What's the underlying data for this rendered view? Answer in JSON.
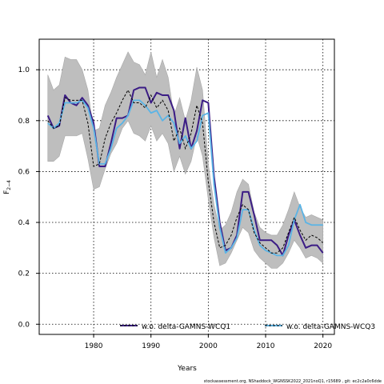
{
  "chart_data": {
    "type": "line",
    "xlabel": "Years",
    "ylabel": "F2-4",
    "ylabel_main": "F",
    "ylabel_sub": "2−4",
    "xlim": [
      1970.5,
      2022
    ],
    "ylim": [
      -0.04,
      1.12
    ],
    "xticks": [
      1980,
      1990,
      2000,
      2010,
      2020
    ],
    "yticks": [
      0.0,
      0.2,
      0.4,
      0.6,
      0.8,
      1.0
    ],
    "xtick_labels": [
      "1980",
      "1990",
      "2000",
      "2010",
      "2020"
    ],
    "ytick_labels": [
      "0.0",
      "0.2",
      "0.4",
      "0.6",
      "0.8",
      "1.0"
    ],
    "grid": true,
    "legend_position": "bottom",
    "footer": "stockassessment.org, NShaddock_WGNSSK2022_2021noQ1, r15689 , git: ec2c2a0c6dde",
    "colors": {
      "band": "#bebebe",
      "series_a": "#3b1c85",
      "series_b": "#5ab4e6",
      "base": "#000000"
    },
    "x": [
      1972,
      1973,
      1974,
      1975,
      1976,
      1977,
      1978,
      1979,
      1980,
      1981,
      1982,
      1983,
      1984,
      1985,
      1986,
      1987,
      1988,
      1989,
      1990,
      1991,
      1992,
      1993,
      1994,
      1995,
      1996,
      1997,
      1998,
      1999,
      2000,
      2001,
      2002,
      2003,
      2004,
      2005,
      2006,
      2007,
      2008,
      2009,
      2010,
      2011,
      2012,
      2013,
      2014,
      2015,
      2016,
      2017,
      2018,
      2019,
      2020
    ],
    "band_upper": [
      0.98,
      0.92,
      0.94,
      1.05,
      1.04,
      1.04,
      1.0,
      0.92,
      0.76,
      0.77,
      0.86,
      0.91,
      0.97,
      1.02,
      1.07,
      1.03,
      1.02,
      0.98,
      1.07,
      0.97,
      1.04,
      0.97,
      0.82,
      0.89,
      0.8,
      0.88,
      1.01,
      0.92,
      0.63,
      0.47,
      0.37,
      0.39,
      0.44,
      0.52,
      0.57,
      0.55,
      0.44,
      0.38,
      0.36,
      0.35,
      0.35,
      0.39,
      0.45,
      0.52,
      0.46,
      0.42,
      0.43,
      0.42,
      0.41
    ],
    "band_lower": [
      0.64,
      0.64,
      0.66,
      0.74,
      0.74,
      0.74,
      0.75,
      0.65,
      0.53,
      0.54,
      0.61,
      0.67,
      0.71,
      0.77,
      0.8,
      0.75,
      0.74,
      0.72,
      0.78,
      0.72,
      0.75,
      0.71,
      0.6,
      0.66,
      0.59,
      0.64,
      0.74,
      0.66,
      0.49,
      0.34,
      0.23,
      0.24,
      0.28,
      0.33,
      0.38,
      0.36,
      0.29,
      0.26,
      0.24,
      0.22,
      0.22,
      0.24,
      0.28,
      0.33,
      0.3,
      0.26,
      0.27,
      0.26,
      0.24
    ],
    "base_values": [
      0.8,
      0.77,
      0.78,
      0.89,
      0.88,
      0.88,
      0.88,
      0.79,
      0.62,
      0.63,
      0.73,
      0.79,
      0.83,
      0.88,
      0.92,
      0.87,
      0.87,
      0.85,
      0.9,
      0.85,
      0.88,
      0.84,
      0.72,
      0.77,
      0.69,
      0.75,
      0.86,
      0.79,
      0.56,
      0.4,
      0.3,
      0.31,
      0.35,
      0.42,
      0.47,
      0.45,
      0.36,
      0.32,
      0.3,
      0.28,
      0.28,
      0.3,
      0.36,
      0.42,
      0.37,
      0.33,
      0.35,
      0.34,
      0.32
    ],
    "series": [
      {
        "name": "w.o. delta-GAMNS-WCQ1",
        "values": [
          0.82,
          0.77,
          0.78,
          0.9,
          0.87,
          0.86,
          0.89,
          0.86,
          0.79,
          0.62,
          0.62,
          0.71,
          0.81,
          0.81,
          0.82,
          0.92,
          0.93,
          0.93,
          0.87,
          0.91,
          0.9,
          0.9,
          0.84,
          0.69,
          0.81,
          0.69,
          0.76,
          0.88,
          0.87,
          0.58,
          0.4,
          0.29,
          0.3,
          0.35,
          0.52,
          0.52,
          0.43,
          0.33,
          0.33,
          0.33,
          0.31,
          0.27,
          0.35,
          0.41,
          0.35,
          0.3,
          0.31,
          0.31,
          0.28
        ]
      },
      {
        "name": "w.o. delta-GAMNS-WCQ3",
        "values": [
          0.79,
          0.77,
          0.79,
          0.87,
          0.87,
          0.87,
          0.88,
          0.85,
          0.77,
          0.63,
          0.63,
          0.69,
          0.77,
          0.79,
          0.82,
          0.88,
          0.88,
          0.86,
          0.83,
          0.84,
          0.8,
          0.82,
          0.79,
          0.71,
          0.74,
          0.69,
          0.72,
          0.82,
          0.83,
          0.55,
          0.38,
          0.28,
          0.3,
          0.34,
          0.45,
          0.45,
          0.37,
          0.31,
          0.29,
          0.28,
          0.27,
          0.27,
          0.31,
          0.41,
          0.47,
          0.4,
          0.39,
          0.39,
          0.39
        ]
      }
    ]
  }
}
